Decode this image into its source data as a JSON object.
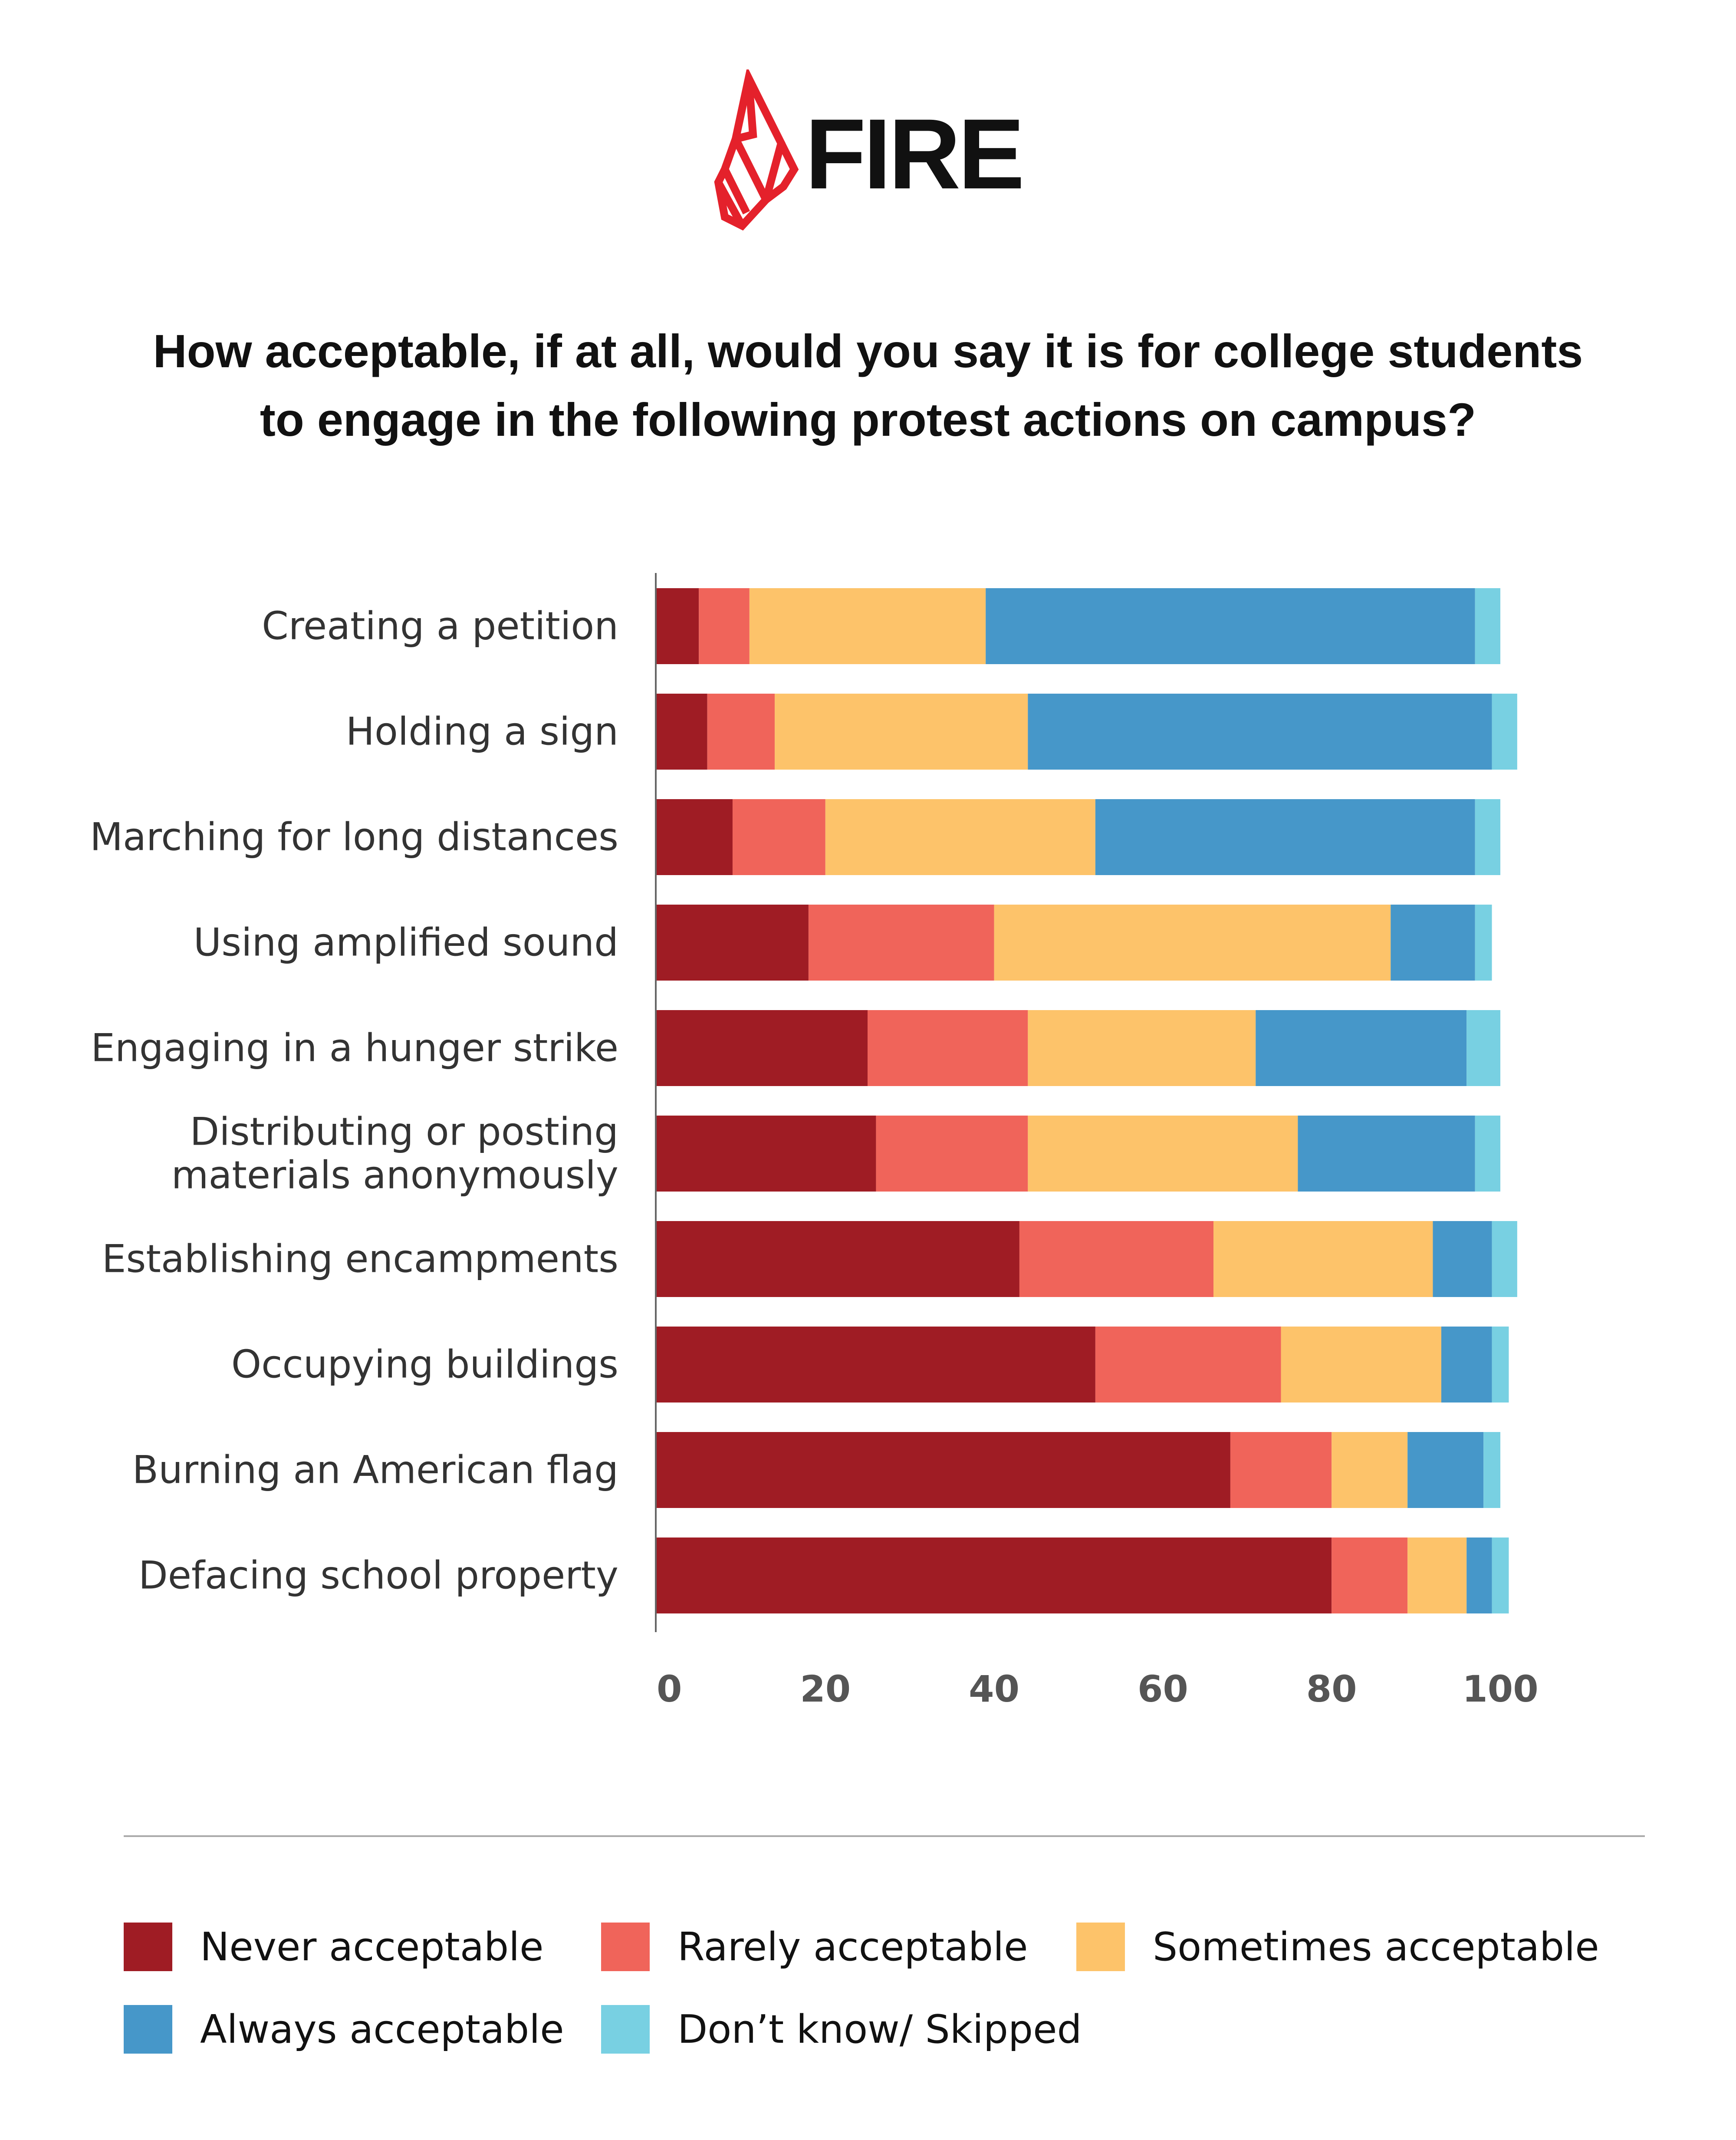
{
  "logo": {
    "text": "FIRE",
    "brand_color": "#e4212b"
  },
  "title_lines": [
    "How acceptable, if at all, would you say it is for college students",
    "to engage in the following protest actions on campus?"
  ],
  "chart_data": {
    "type": "bar",
    "orientation": "horizontal",
    "stacked": true,
    "title": "How acceptable, if at all, would you say it is for college students to engage in the following protest actions on campus?",
    "xlim": [
      0,
      100
    ],
    "xticks": [
      0,
      20,
      40,
      60,
      80,
      100
    ],
    "grid": false,
    "legend_position": "bottom",
    "categories": [
      [
        "Creating a petition"
      ],
      [
        "Holding a sign"
      ],
      [
        "Marching for long distances"
      ],
      [
        "Using amplified sound"
      ],
      [
        "Engaging in a hunger strike"
      ],
      [
        "Distributing or posting",
        "materials anonymously"
      ],
      [
        "Establishing encampments"
      ],
      [
        "Occupying buildings"
      ],
      [
        "Burning an American flag"
      ],
      [
        "Defacing school property"
      ]
    ],
    "series": [
      {
        "name": "Never acceptable",
        "color": "#9f1c24",
        "values": [
          5,
          6,
          9,
          18,
          25,
          26,
          43,
          52,
          68,
          80
        ]
      },
      {
        "name": "Rarely acceptable",
        "color": "#f0645a",
        "values": [
          6,
          8,
          11,
          22,
          19,
          18,
          23,
          22,
          12,
          9
        ]
      },
      {
        "name": "Sometimes acceptable",
        "color": "#fdc36a",
        "values": [
          28,
          30,
          32,
          47,
          27,
          32,
          26,
          19,
          9,
          7
        ]
      },
      {
        "name": "Always acceptable",
        "color": "#4697c9",
        "values": [
          58,
          55,
          45,
          10,
          25,
          21,
          7,
          6,
          9,
          3
        ]
      },
      {
        "name": "Don’t know/ Skipped",
        "color": "#78d0e2",
        "values": [
          3,
          3,
          3,
          2,
          4,
          3,
          3,
          2,
          2,
          2
        ]
      }
    ]
  }
}
